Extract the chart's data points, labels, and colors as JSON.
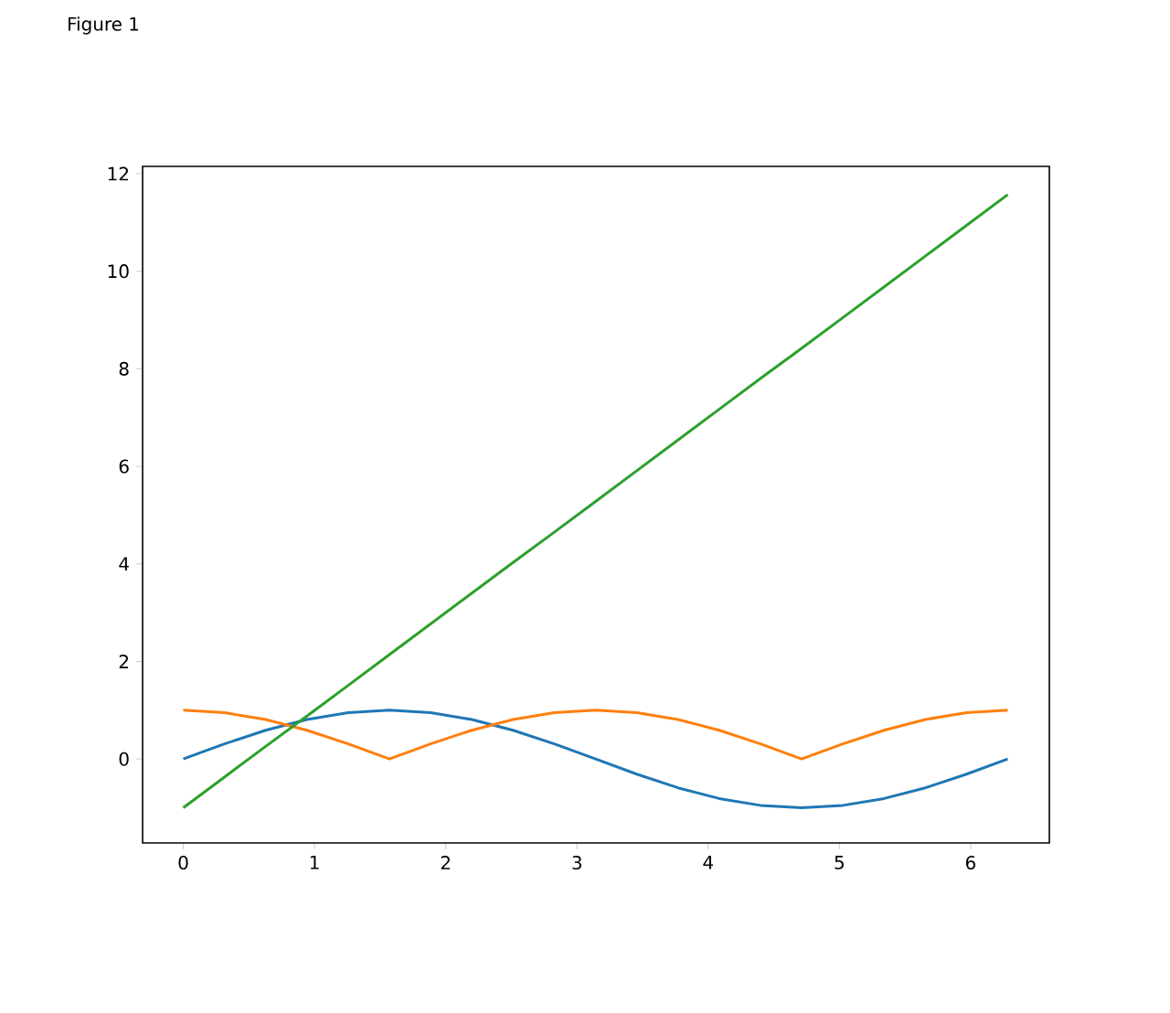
{
  "chart_data": {
    "type": "line",
    "annotations": [
      "Figure 1"
    ],
    "x": [
      0,
      0.314,
      0.628,
      0.942,
      1.257,
      1.571,
      1.885,
      2.199,
      2.513,
      2.827,
      3.142,
      3.456,
      3.77,
      4.084,
      4.398,
      4.712,
      5.027,
      5.341,
      5.655,
      5.969,
      6.283
    ],
    "series": [
      {
        "color": "#1f77b4",
        "values": [
          0,
          0.31,
          0.59,
          0.81,
          0.95,
          1,
          0.95,
          0.81,
          0.59,
          0.31,
          0,
          -0.31,
          -0.59,
          -0.81,
          -0.95,
          -1,
          -0.95,
          -0.81,
          -0.59,
          -0.31,
          0
        ]
      },
      {
        "color": "#ff7f0e",
        "values": [
          1,
          0.95,
          0.81,
          0.59,
          0.31,
          0,
          0.31,
          0.59,
          0.81,
          0.95,
          1,
          0.95,
          0.81,
          0.59,
          0.31,
          0,
          0.31,
          0.59,
          0.81,
          0.95,
          1
        ]
      },
      {
        "color": "#2ca02c",
        "values": [
          -1,
          -0.37,
          0.26,
          0.88,
          1.51,
          2.14,
          2.77,
          3.4,
          4.03,
          4.65,
          5.28,
          5.91,
          6.54,
          7.17,
          7.8,
          8.42,
          9.05,
          9.68,
          10.31,
          10.94,
          11.57
        ]
      }
    ],
    "xlim": [
      -0.31,
      6.6
    ],
    "ylim": [
      -1.72,
      12.15
    ],
    "xticks": [
      0,
      1,
      2,
      3,
      4,
      5,
      6
    ],
    "yticks": [
      0,
      2,
      4,
      6,
      8,
      10,
      12
    ]
  }
}
